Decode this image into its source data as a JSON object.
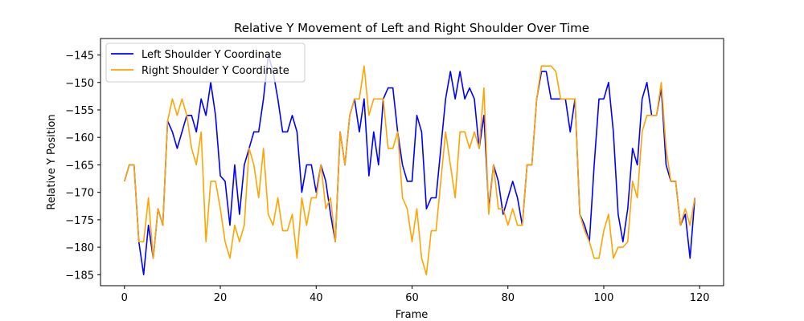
{
  "chart_data": {
    "type": "line",
    "title": "Relative Y Movement of Left and Right Shoulder Over Time",
    "xlabel": "Frame",
    "ylabel": "Relative Y Position",
    "xlim": [
      -5,
      125
    ],
    "ylim": [
      -187,
      -142
    ],
    "xticks": [
      0,
      20,
      40,
      60,
      80,
      100,
      120
    ],
    "yticks": [
      -145,
      -150,
      -155,
      -160,
      -165,
      -170,
      -175,
      -180,
      -185
    ],
    "grid": false,
    "legend": "top-left",
    "series": [
      {
        "name": "Left Shoulder Y Coordinate",
        "color": "#0000ff",
        "values": [
          -168,
          -165,
          -165,
          -179,
          -185,
          -176,
          -182,
          -173,
          -176,
          -157,
          -159,
          -162,
          -159,
          -156,
          -156,
          -159,
          -153,
          -156,
          -150,
          -156,
          -167,
          -168,
          -176,
          -165,
          -174,
          -165,
          -162,
          -159,
          -159,
          -153,
          -145,
          -148,
          -153,
          -159,
          -159,
          -156,
          -159,
          -170,
          -165,
          -165,
          -170,
          -165,
          -168,
          -174,
          -179,
          -159,
          -165,
          -156,
          -153,
          -159,
          -153,
          -167,
          -159,
          -165,
          -153,
          -151,
          -151,
          -159,
          -165,
          -168,
          -168,
          -156,
          -159,
          -173,
          -171,
          -171,
          -162,
          -153,
          -148,
          -153,
          -148,
          -153,
          -151,
          -153,
          -162,
          -156,
          -173,
          -165,
          -168,
          -174,
          -171,
          -168,
          -171,
          -176,
          -165,
          -165,
          -153,
          -148,
          -148,
          -153,
          -153,
          -153,
          -153,
          -159,
          -153,
          -174,
          -176,
          -179,
          -165,
          -153,
          -153,
          -150,
          -159,
          -174,
          -179,
          -173,
          -162,
          -165,
          -153,
          -150,
          -156,
          -156,
          -151,
          -165,
          -168,
          -168,
          -176,
          -174,
          -182,
          -171
        ]
      },
      {
        "name": "Right Shoulder Y Coordinate",
        "color": "#ffa500",
        "values": [
          -168,
          -165,
          -165,
          -179,
          -179,
          -171,
          -182,
          -173,
          -176,
          -157,
          -153,
          -156,
          -153,
          -156,
          -162,
          -165,
          -159,
          -179,
          -168,
          -168,
          -173,
          -179,
          -182,
          -176,
          -179,
          -176,
          -162,
          -165,
          -171,
          -162,
          -174,
          -176,
          -171,
          -177,
          -177,
          -174,
          -182,
          -171,
          -176,
          -171,
          -171,
          -165,
          -173,
          -171,
          -179,
          -159,
          -165,
          -156,
          -153,
          -153,
          -147,
          -156,
          -153,
          -153,
          -153,
          -162,
          -162,
          -159,
          -171,
          -173,
          -179,
          -173,
          -182,
          -185,
          -177,
          -177,
          -168,
          -159,
          -165,
          -171,
          -159,
          -159,
          -162,
          -159,
          -162,
          -151,
          -174,
          -165,
          -173,
          -173,
          -176,
          -173,
          -176,
          -176,
          -165,
          -165,
          -153,
          -147,
          -147,
          -147,
          -148,
          -153,
          -153,
          -153,
          -153,
          -174,
          -177,
          -179,
          -182,
          -182,
          -177,
          -174,
          -182,
          -180,
          -180,
          -179,
          -168,
          -171,
          -159,
          -156,
          -156,
          -156,
          -150,
          -162,
          -168,
          -168,
          -176,
          -173,
          -176,
          -171
        ]
      }
    ]
  }
}
